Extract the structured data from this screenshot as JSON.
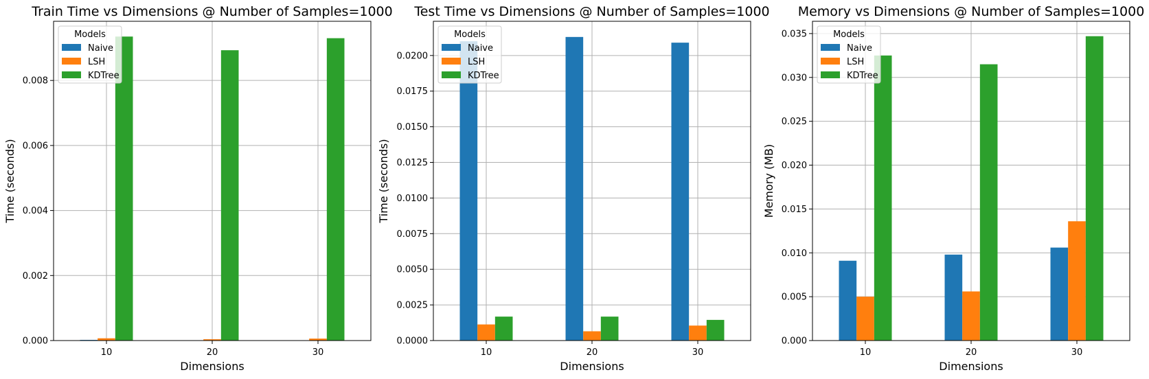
{
  "colors": {
    "Naive": "#1f77b4",
    "LSH": "#ff7f0e",
    "KDTree": "#2ca02c",
    "grid": "#b0b0b0",
    "axis": "#000000"
  },
  "chart_data": [
    {
      "type": "bar",
      "title": "Train Time vs Dimensions @ Number of Samples=1000",
      "xlabel": "Dimensions",
      "ylabel": "Time (seconds)",
      "categories": [
        "10",
        "20",
        "30"
      ],
      "series": [
        {
          "name": "Naive",
          "values": [
            2e-05,
            1e-05,
            1e-05
          ]
        },
        {
          "name": "LSH",
          "values": [
            7e-05,
            4e-05,
            6e-05
          ]
        },
        {
          "name": "KDTree",
          "values": [
            0.00935,
            0.00893,
            0.0093
          ]
        }
      ],
      "ylim": [
        0,
        0.00982
      ],
      "yticks": [
        0,
        0.002,
        0.004,
        0.006,
        0.008
      ],
      "ytick_labels": [
        "0.000",
        "0.002",
        "0.004",
        "0.006",
        "0.008"
      ],
      "grid": true,
      "legend": {
        "title": "Models",
        "placement": "top-left"
      }
    },
    {
      "type": "bar",
      "title": "Test Time vs Dimensions @ Number of Samples=1000",
      "xlabel": "Dimensions",
      "ylabel": "Time (seconds)",
      "categories": [
        "10",
        "20",
        "30"
      ],
      "series": [
        {
          "name": "Naive",
          "values": [
            0.021,
            0.0213,
            0.0209
          ]
        },
        {
          "name": "LSH",
          "values": [
            0.00113,
            0.00065,
            0.00105
          ]
        },
        {
          "name": "KDTree",
          "values": [
            0.00168,
            0.00168,
            0.00145
          ]
        }
      ],
      "ylim": [
        0,
        0.0224
      ],
      "yticks": [
        0,
        0.0025,
        0.005,
        0.0075,
        0.01,
        0.0125,
        0.015,
        0.0175,
        0.02
      ],
      "ytick_labels": [
        "0.0000",
        "0.0025",
        "0.0050",
        "0.0075",
        "0.0100",
        "0.0125",
        "0.0150",
        "0.0175",
        "0.0200"
      ],
      "grid": true,
      "legend": {
        "title": "Models",
        "placement": "top-left"
      }
    },
    {
      "type": "bar",
      "title": "Memory vs Dimensions @ Number of Samples=1000",
      "xlabel": "Dimensions",
      "ylabel": "Memory (MB)",
      "categories": [
        "10",
        "20",
        "30"
      ],
      "series": [
        {
          "name": "Naive",
          "values": [
            0.0091,
            0.0098,
            0.0106
          ]
        },
        {
          "name": "LSH",
          "values": [
            0.005,
            0.0056,
            0.0136
          ]
        },
        {
          "name": "KDTree",
          "values": [
            0.0325,
            0.0315,
            0.0347
          ]
        }
      ],
      "ylim": [
        0,
        0.0364
      ],
      "yticks": [
        0,
        0.005,
        0.01,
        0.015,
        0.02,
        0.025,
        0.03,
        0.035
      ],
      "ytick_labels": [
        "0.000",
        "0.005",
        "0.010",
        "0.015",
        "0.020",
        "0.025",
        "0.030",
        "0.035"
      ],
      "grid": true,
      "legend": {
        "title": "Models",
        "placement": "top-left"
      }
    }
  ]
}
